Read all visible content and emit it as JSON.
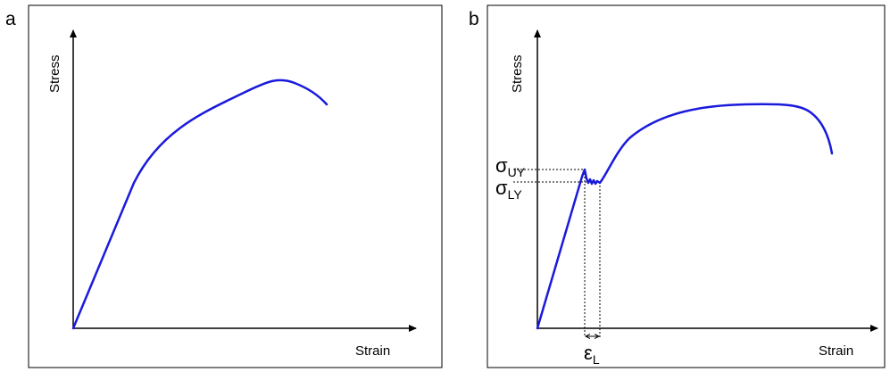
{
  "panels": [
    {
      "tag": "a",
      "y_axis_label": "Stress",
      "x_axis_label": "Strain"
    },
    {
      "tag": "b",
      "y_axis_label": "Stress",
      "x_axis_label": "Strain",
      "upper_yield": {
        "symbol": "σ",
        "subscript": "UY"
      },
      "lower_yield": {
        "symbol": "σ",
        "subscript": "LY"
      },
      "luders_strain": {
        "symbol": "ε",
        "subscript": "L"
      }
    }
  ],
  "colors": {
    "curve": "#1a1adc",
    "axis": "#000000",
    "frame": "#000000"
  }
}
